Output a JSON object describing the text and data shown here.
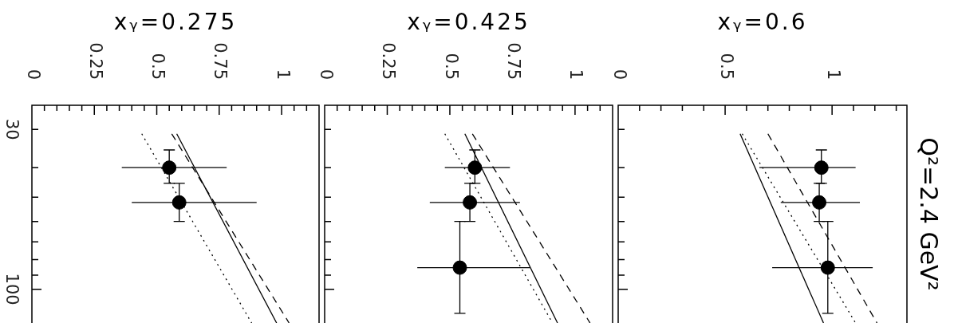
{
  "chart_data": [
    {
      "type": "scatter",
      "title": "xᵧ=0.275",
      "xlim": [
        0,
        1.15
      ],
      "xticks": [
        0,
        {
          "value": 0.05,
          "label": null
        },
        {
          "value": 0.1,
          "label": null
        },
        {
          "value": 0.15,
          "label": null
        },
        {
          "value": 0.2,
          "label": null
        },
        0.25,
        {
          "value": 0.3,
          "label": null
        },
        {
          "value": 0.35,
          "label": null
        },
        {
          "value": 0.4,
          "label": null
        },
        {
          "value": 0.45,
          "label": null
        },
        0.5,
        {
          "value": 0.55,
          "label": null
        },
        {
          "value": 0.6,
          "label": null
        },
        {
          "value": 0.65,
          "label": null
        },
        {
          "value": 0.7,
          "label": null
        },
        0.75,
        {
          "value": 0.8,
          "label": null
        },
        {
          "value": 0.85,
          "label": null
        },
        {
          "value": 0.9,
          "label": null
        },
        {
          "value": 0.95,
          "label": null
        },
        1,
        {
          "value": 1.05,
          "label": null
        },
        {
          "value": 1.1,
          "label": null
        }
      ],
      "ylim": [
        129,
        25
      ],
      "yticks": [
        30,
        {
          "value": 40,
          "label": null
        },
        {
          "value": 50,
          "label": null
        },
        {
          "value": 60,
          "label": null
        },
        {
          "value": 70,
          "label": null
        },
        {
          "value": 80,
          "label": null
        },
        {
          "value": 90,
          "label": null
        },
        100
      ],
      "log": "y",
      "legend": false,
      "series": [
        {
          "type": "scatter",
          "color": "#000000",
          "marker": "circle",
          "x": [
            0.55,
            0.59
          ],
          "values": [
            40,
            52
          ],
          "errors": [
            [
              35,
              45
            ],
            [
              45,
              60
            ]
          ],
          "xerrors": [
            [
              0.36,
              0.78
            ],
            [
              0.4,
              0.9
            ]
          ]
        },
        {
          "type": "line",
          "color": "#000000",
          "line_style": "solid",
          "marker": "none",
          "x": [
            0.58,
            0.98
          ],
          "values": [
            31,
            129
          ]
        },
        {
          "type": "line",
          "color": "#000000",
          "line_style": "dashed",
          "marker": "none",
          "x": [
            0.56,
            1.03
          ],
          "values": [
            31,
            129
          ]
        },
        {
          "type": "line",
          "color": "#000000",
          "line_style": "dotted",
          "marker": "none",
          "x": [
            0.44,
            0.88
          ],
          "values": [
            31,
            129
          ]
        }
      ]
    },
    {
      "type": "scatter",
      "title": "xᵧ=0.425",
      "xlim": [
        0,
        1.15
      ],
      "xticks": [
        0,
        {
          "value": 0.05,
          "label": null
        },
        {
          "value": 0.1,
          "label": null
        },
        {
          "value": 0.15,
          "label": null
        },
        {
          "value": 0.2,
          "label": null
        },
        0.25,
        {
          "value": 0.3,
          "label": null
        },
        {
          "value": 0.35,
          "label": null
        },
        {
          "value": 0.4,
          "label": null
        },
        {
          "value": 0.45,
          "label": null
        },
        0.5,
        {
          "value": 0.55,
          "label": null
        },
        {
          "value": 0.6,
          "label": null
        },
        {
          "value": 0.65,
          "label": null
        },
        {
          "value": 0.7,
          "label": null
        },
        0.75,
        {
          "value": 0.8,
          "label": null
        },
        {
          "value": 0.85,
          "label": null
        },
        {
          "value": 0.9,
          "label": null
        },
        {
          "value": 0.95,
          "label": null
        },
        1,
        {
          "value": 1.05,
          "label": null
        },
        {
          "value": 1.1,
          "label": null
        }
      ],
      "ylim": [
        129,
        25
      ],
      "yticks": [
        {
          "value": 30,
          "label": null
        },
        {
          "value": 40,
          "label": null
        },
        {
          "value": 50,
          "label": null
        },
        {
          "value": 60,
          "label": null
        },
        {
          "value": 70,
          "label": null
        },
        {
          "value": 80,
          "label": null
        },
        {
          "value": 90,
          "label": null
        },
        {
          "value": 100,
          "label": null
        }
      ],
      "log": "y",
      "legend": false,
      "tick_labels": "x",
      "series": [
        {
          "type": "scatter",
          "color": "#000000",
          "marker": "circle",
          "x": [
            0.6,
            0.58,
            0.54
          ],
          "values": [
            40,
            52,
            85
          ],
          "errors": [
            [
              35,
              45
            ],
            [
              45,
              60
            ],
            [
              60,
              120
            ]
          ],
          "xerrors": [
            [
              0.48,
              0.74
            ],
            [
              0.42,
              0.78
            ],
            [
              0.37,
              0.82
            ]
          ]
        },
        {
          "type": "line",
          "color": "#000000",
          "line_style": "solid",
          "marker": "none",
          "x": [
            0.56,
            0.93
          ],
          "values": [
            31,
            129
          ]
        },
        {
          "type": "line",
          "color": "#000000",
          "line_style": "dashed",
          "marker": "none",
          "x": [
            0.59,
            1.06
          ],
          "values": [
            31,
            129
          ]
        },
        {
          "type": "line",
          "color": "#000000",
          "line_style": "dotted",
          "marker": "none",
          "x": [
            0.48,
            0.91
          ],
          "values": [
            31,
            129
          ]
        }
      ]
    },
    {
      "type": "scatter",
      "title": "xᵧ=0.6",
      "annotations": [
        "Q²=2.4 GeV²"
      ],
      "xlim": [
        0,
        1.35
      ],
      "xticks": [
        0,
        {
          "value": 0.1,
          "label": null
        },
        {
          "value": 0.2,
          "label": null
        },
        {
          "value": 0.3,
          "label": null
        },
        {
          "value": 0.4,
          "label": null
        },
        0.5,
        {
          "value": 0.6,
          "label": null
        },
        {
          "value": 0.7,
          "label": null
        },
        {
          "value": 0.8,
          "label": null
        },
        {
          "value": 0.9,
          "label": null
        },
        1,
        {
          "value": 1.1,
          "label": null
        },
        {
          "value": 1.2,
          "label": null
        },
        {
          "value": 1.3,
          "label": null
        }
      ],
      "ylim": [
        129,
        25
      ],
      "yticks": [
        {
          "value": 30,
          "label": null
        },
        {
          "value": 40,
          "label": null
        },
        {
          "value": 50,
          "label": null
        },
        {
          "value": 60,
          "label": null
        },
        {
          "value": 70,
          "label": null
        },
        {
          "value": 80,
          "label": null
        },
        {
          "value": 90,
          "label": null
        },
        {
          "value": 100,
          "label": null
        }
      ],
      "log": "y",
      "legend": false,
      "tick_labels": "x",
      "series": [
        {
          "type": "scatter",
          "color": "#000000",
          "marker": "circle",
          "x": [
            0.95,
            0.94,
            0.98
          ],
          "values": [
            40,
            52,
            85
          ],
          "errors": [
            [
              35,
              45
            ],
            [
              45,
              60
            ],
            [
              60,
              120
            ]
          ],
          "xerrors": [
            [
              0.66,
              1.11
            ],
            [
              0.76,
              1.13
            ],
            [
              0.72,
              1.19
            ]
          ]
        },
        {
          "type": "line",
          "color": "#000000",
          "line_style": "solid",
          "marker": "none",
          "x": [
            0.57,
            0.96
          ],
          "values": [
            31,
            129
          ]
        },
        {
          "type": "line",
          "color": "#000000",
          "line_style": "dashed",
          "marker": "none",
          "x": [
            0.7,
            1.21
          ],
          "values": [
            31,
            129
          ]
        },
        {
          "type": "line",
          "color": "#000000",
          "line_style": "dotted",
          "marker": "none",
          "x": [
            0.58,
            1.11
          ],
          "values": [
            31,
            129
          ]
        }
      ]
    }
  ]
}
